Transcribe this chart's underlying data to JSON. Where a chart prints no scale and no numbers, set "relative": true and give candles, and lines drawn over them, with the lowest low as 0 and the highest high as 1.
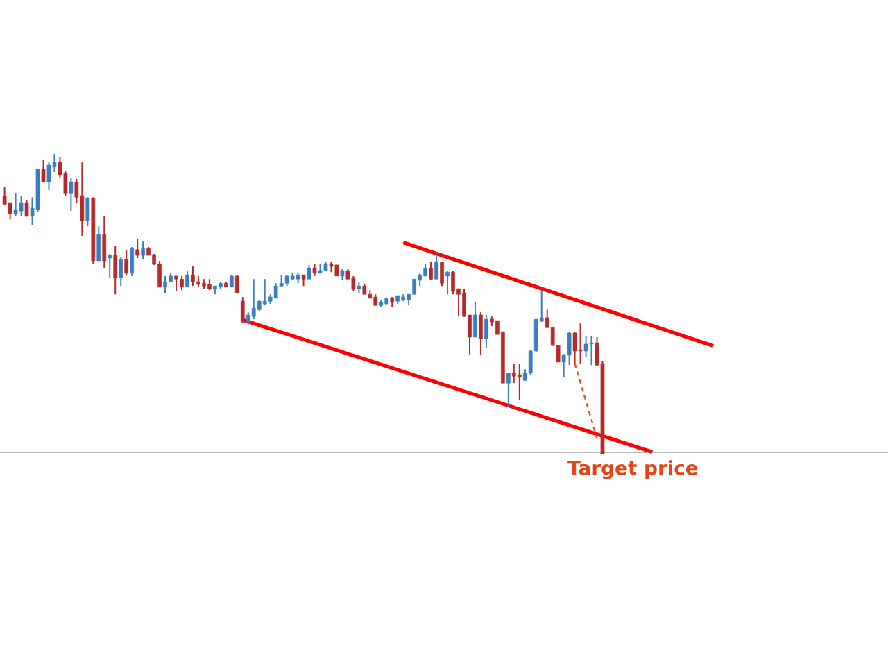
{
  "chart_data": {
    "type": "candlestick",
    "relative": true,
    "categories": [
      null,
      null,
      null,
      null,
      null,
      null,
      null,
      null,
      null,
      null,
      null,
      null,
      null,
      null,
      null,
      null,
      null,
      null,
      null,
      null,
      null,
      null,
      null,
      null,
      null,
      null,
      null,
      null,
      null,
      null,
      null,
      null,
      null,
      null,
      null,
      null,
      null,
      null,
      null,
      null,
      null,
      null,
      null,
      null,
      null,
      null,
      null,
      null,
      null,
      null,
      null,
      null,
      null,
      null,
      null,
      null,
      null,
      null,
      null,
      null,
      null,
      null,
      null,
      null,
      null,
      null,
      null,
      null,
      null,
      null,
      null,
      null,
      null,
      null,
      null,
      null,
      null,
      null,
      null,
      null,
      null,
      null,
      null,
      null,
      null,
      null,
      null,
      null,
      null,
      null,
      null,
      null,
      null,
      null,
      null,
      null,
      null,
      null,
      null,
      null,
      null,
      null,
      null,
      null,
      null,
      null,
      null,
      null,
      null,
      null,
      null,
      null,
      null,
      null,
      null,
      null,
      null,
      null,
      null,
      null,
      null,
      null,
      null,
      null,
      null,
      null,
      null,
      null,
      null
    ],
    "ohlc": [
      [
        0.861,
        0.889,
        0.829,
        0.833
      ],
      [
        0.838,
        0.838,
        0.782,
        0.801
      ],
      [
        0.801,
        0.87,
        0.792,
        0.815
      ],
      [
        0.81,
        0.861,
        0.792,
        0.838
      ],
      [
        0.838,
        0.847,
        0.792,
        0.792
      ],
      [
        0.792,
        0.856,
        0.764,
        0.819
      ],
      [
        0.815,
        0.949,
        0.806,
        0.949
      ],
      [
        0.949,
        0.981,
        0.907,
        0.907
      ],
      [
        0.907,
        0.972,
        0.88,
        0.963
      ],
      [
        0.958,
        1,
        0.94,
        0.972
      ],
      [
        0.972,
        0.991,
        0.921,
        0.931
      ],
      [
        0.935,
        0.944,
        0.861,
        0.87
      ],
      [
        0.87,
        0.921,
        0.81,
        0.907
      ],
      [
        0.907,
        0.917,
        0.838,
        0.856
      ],
      [
        0.861,
        0.972,
        0.727,
        0.778
      ],
      [
        0.778,
        0.856,
        0.759,
        0.852
      ],
      [
        0.852,
        0.856,
        0.634,
        0.644
      ],
      [
        0.644,
        0.759,
        0.644,
        0.731
      ],
      [
        0.731,
        0.792,
        0.62,
        0.644
      ],
      [
        0.653,
        0.667,
        0.588,
        0.662
      ],
      [
        0.662,
        0.694,
        0.532,
        0.588
      ],
      [
        0.588,
        0.657,
        0.56,
        0.648
      ],
      [
        0.648,
        0.681,
        0.597,
        0.602
      ],
      [
        0.602,
        0.69,
        0.593,
        0.685
      ],
      [
        0.681,
        0.718,
        0.653,
        0.662
      ],
      [
        0.662,
        0.708,
        0.648,
        0.685
      ],
      [
        0.685,
        0.69,
        0.662,
        0.662
      ],
      [
        0.662,
        0.667,
        0.63,
        0.634
      ],
      [
        0.634,
        0.644,
        0.556,
        0.556
      ],
      [
        0.556,
        0.593,
        0.537,
        0.574
      ],
      [
        0.574,
        0.602,
        0.574,
        0.593
      ],
      [
        0.593,
        0.593,
        0.542,
        0.583
      ],
      [
        0.583,
        0.593,
        0.546,
        0.556
      ],
      [
        0.556,
        0.611,
        0.556,
        0.597
      ],
      [
        0.597,
        0.625,
        0.56,
        0.574
      ],
      [
        0.574,
        0.593,
        0.556,
        0.565
      ],
      [
        0.569,
        0.583,
        0.551,
        0.56
      ],
      [
        0.565,
        0.583,
        0.546,
        0.551
      ],
      [
        0.551,
        0.56,
        0.532,
        0.56
      ],
      [
        0.556,
        0.574,
        0.551,
        0.569
      ],
      [
        0.569,
        0.574,
        0.556,
        0.556
      ],
      [
        0.556,
        0.597,
        0.556,
        0.593
      ],
      [
        0.593,
        0.597,
        0.537,
        0.537
      ],
      [
        0.509,
        0.523,
        0.435,
        0.44
      ],
      [
        0.44,
        0.472,
        0.431,
        0.463
      ],
      [
        0.458,
        0.583,
        0.449,
        0.486
      ],
      [
        0.481,
        0.514,
        0.477,
        0.509
      ],
      [
        0.5,
        0.583,
        0.495,
        0.509
      ],
      [
        0.509,
        0.532,
        0.5,
        0.523
      ],
      [
        0.519,
        0.569,
        0.519,
        0.56
      ],
      [
        0.56,
        0.597,
        0.556,
        0.569
      ],
      [
        0.569,
        0.597,
        0.56,
        0.593
      ],
      [
        0.583,
        0.602,
        0.579,
        0.593
      ],
      [
        0.583,
        0.602,
        0.569,
        0.597
      ],
      [
        0.597,
        0.597,
        0.56,
        0.583
      ],
      [
        0.583,
        0.63,
        0.583,
        0.62
      ],
      [
        0.62,
        0.634,
        0.593,
        0.602
      ],
      [
        0.602,
        0.634,
        0.602,
        0.611
      ],
      [
        0.611,
        0.639,
        0.611,
        0.634
      ],
      [
        0.634,
        0.639,
        0.606,
        0.625
      ],
      [
        0.63,
        0.63,
        0.593,
        0.593
      ],
      [
        0.593,
        0.616,
        0.579,
        0.611
      ],
      [
        0.611,
        0.616,
        0.583,
        0.583
      ],
      [
        0.588,
        0.593,
        0.542,
        0.551
      ],
      [
        0.551,
        0.574,
        0.537,
        0.56
      ],
      [
        0.56,
        0.565,
        0.532,
        0.532
      ],
      [
        0.532,
        0.546,
        0.519,
        0.519
      ],
      [
        0.523,
        0.532,
        0.495,
        0.495
      ],
      [
        0.495,
        0.514,
        0.491,
        0.505
      ],
      [
        0.5,
        0.519,
        0.5,
        0.519
      ],
      [
        0.519,
        0.523,
        0.491,
        0.505
      ],
      [
        0.509,
        0.528,
        0.5,
        0.528
      ],
      [
        0.514,
        0.532,
        0.509,
        0.523
      ],
      [
        0.514,
        0.532,
        0.495,
        0.532
      ],
      [
        0.532,
        0.583,
        0.532,
        0.583
      ],
      [
        0.579,
        0.602,
        0.56,
        0.597
      ],
      [
        0.593,
        0.634,
        0.593,
        0.62
      ],
      [
        0.62,
        0.639,
        0.579,
        0.583
      ],
      [
        0.583,
        0.671,
        0.583,
        0.639
      ],
      [
        0.639,
        0.639,
        0.56,
        0.569
      ],
      [
        0.593,
        0.611,
        0.532,
        0.606
      ],
      [
        0.606,
        0.611,
        0.532,
        0.542
      ],
      [
        0.551,
        0.551,
        0.458,
        0.532
      ],
      [
        0.537,
        0.551,
        0.458,
        0.458
      ],
      [
        0.463,
        0.463,
        0.329,
        0.389
      ],
      [
        0.389,
        0.505,
        0.389,
        0.463
      ],
      [
        0.463,
        0.472,
        0.329,
        0.384
      ],
      [
        0.384,
        0.463,
        0.352,
        0.449
      ],
      [
        0.449,
        0.458,
        0.426,
        0.44
      ],
      [
        0.444,
        0.444,
        0.398,
        0.398
      ],
      [
        0.407,
        0.407,
        0.236,
        0.236
      ],
      [
        0.236,
        0.269,
        0.157,
        0.269
      ],
      [
        0.269,
        0.301,
        0.236,
        0.259
      ],
      [
        0.264,
        0.301,
        0.181,
        0.255
      ],
      [
        0.245,
        0.282,
        0.245,
        0.269
      ],
      [
        0.269,
        0.347,
        0.264,
        0.343
      ],
      [
        0.343,
        0.449,
        0.338,
        0.449
      ],
      [
        0.444,
        0.546,
        0.44,
        0.454
      ],
      [
        0.454,
        0.481,
        0.421,
        0.421
      ],
      [
        0.421,
        0.421,
        0.361,
        0.361
      ],
      [
        0.361,
        0.361,
        0.306,
        0.306
      ],
      [
        0.306,
        0.333,
        0.255,
        0.329
      ],
      [
        0.329,
        0.407,
        0.296,
        0.403
      ],
      [
        0.403,
        0.407,
        0.301,
        0.343
      ],
      [
        0.347,
        0.435,
        0.301,
        0.343
      ],
      [
        0.343,
        0.394,
        0.324,
        0.366
      ],
      [
        0.366,
        0.394,
        0.296,
        0.37
      ],
      [
        0.37,
        0.389,
        0.292,
        0.296
      ],
      [
        0.301,
        0.31,
        0,
        0
      ],
      null,
      null,
      null,
      null,
      null,
      null,
      null,
      null,
      null,
      null,
      null,
      null,
      null,
      null,
      null,
      null,
      null,
      null,
      null,
      null
    ],
    "series": [
      {
        "type": "line",
        "color": "#ff0000",
        "values": [
          null,
          null,
          null,
          null,
          null,
          null,
          null,
          null,
          null,
          null,
          null,
          null,
          null,
          null,
          null,
          null,
          null,
          null,
          null,
          null,
          null,
          null,
          null,
          null,
          null,
          null,
          null,
          null,
          null,
          null,
          null,
          null,
          null,
          null,
          null,
          null,
          null,
          null,
          null,
          null,
          null,
          null,
          null,
          null,
          null,
          null,
          null,
          null,
          null,
          null,
          null,
          null,
          null,
          null,
          null,
          null,
          null,
          null,
          null,
          null,
          null,
          null,
          null,
          null,
          null,
          null,
          null,
          null,
          null,
          null,
          null,
          null,
          0.705,
          null,
          null,
          null,
          null,
          null,
          null,
          null,
          null,
          null,
          null,
          null,
          null,
          null,
          null,
          null,
          null,
          null,
          null,
          null,
          null,
          null,
          null,
          null,
          null,
          null,
          null,
          null,
          null,
          null,
          null,
          null,
          null,
          null,
          null,
          null,
          null,
          null,
          null,
          null,
          null,
          null,
          null,
          null,
          null,
          null,
          null,
          null,
          null,
          null,
          null,
          null,
          null,
          null,
          null,
          null,
          0.36
        ]
      },
      {
        "type": "line",
        "color": "#ff0000",
        "values": [
          null,
          null,
          null,
          null,
          null,
          null,
          null,
          null,
          null,
          null,
          null,
          null,
          null,
          null,
          null,
          null,
          null,
          null,
          null,
          null,
          null,
          null,
          null,
          null,
          null,
          null,
          null,
          null,
          null,
          null,
          null,
          null,
          null,
          null,
          null,
          null,
          null,
          null,
          null,
          null,
          null,
          null,
          null,
          0.447,
          null,
          null,
          null,
          null,
          null,
          null,
          null,
          null,
          null,
          null,
          null,
          null,
          null,
          null,
          null,
          null,
          null,
          null,
          null,
          null,
          null,
          null,
          null,
          null,
          null,
          null,
          null,
          null,
          null,
          null,
          null,
          null,
          null,
          null,
          null,
          null,
          null,
          null,
          null,
          null,
          null,
          null,
          null,
          null,
          null,
          null,
          null,
          null,
          null,
          null,
          null,
          null,
          null,
          null,
          null,
          null,
          null,
          null,
          null,
          null,
          null,
          null,
          null,
          null,
          null,
          null,
          null,
          null,
          null,
          null,
          null,
          null,
          null,
          0.006,
          null,
          null,
          null,
          null,
          null,
          null,
          null,
          null,
          null,
          null,
          null
        ]
      },
      {
        "type": "line",
        "color": "#e0501e",
        "line_style": "dashed",
        "values": [
          null,
          null,
          null,
          null,
          null,
          null,
          null,
          null,
          null,
          null,
          null,
          null,
          null,
          null,
          null,
          null,
          null,
          null,
          null,
          null,
          null,
          null,
          null,
          null,
          null,
          null,
          null,
          null,
          null,
          null,
          null,
          null,
          null,
          null,
          null,
          null,
          null,
          null,
          null,
          null,
          null,
          null,
          null,
          null,
          null,
          null,
          null,
          null,
          null,
          null,
          null,
          null,
          null,
          null,
          null,
          null,
          null,
          null,
          null,
          null,
          null,
          null,
          null,
          null,
          null,
          null,
          null,
          null,
          null,
          null,
          null,
          null,
          null,
          null,
          null,
          null,
          null,
          null,
          null,
          null,
          null,
          null,
          null,
          null,
          null,
          null,
          null,
          null,
          null,
          null,
          null,
          null,
          null,
          null,
          null,
          null,
          null,
          null,
          null,
          null,
          null,
          null,
          null,
          0.301,
          null,
          null,
          null,
          0.051,
          null,
          null,
          null,
          null,
          null,
          null,
          null,
          null,
          null,
          null,
          null,
          null,
          null,
          null,
          null,
          null,
          null,
          null,
          null,
          null,
          null
        ]
      }
    ],
    "ref_lines": [
      {
        "axis": "y",
        "value": 0.005,
        "label": "Target price",
        "color": "#a0a0a0"
      }
    ]
  }
}
